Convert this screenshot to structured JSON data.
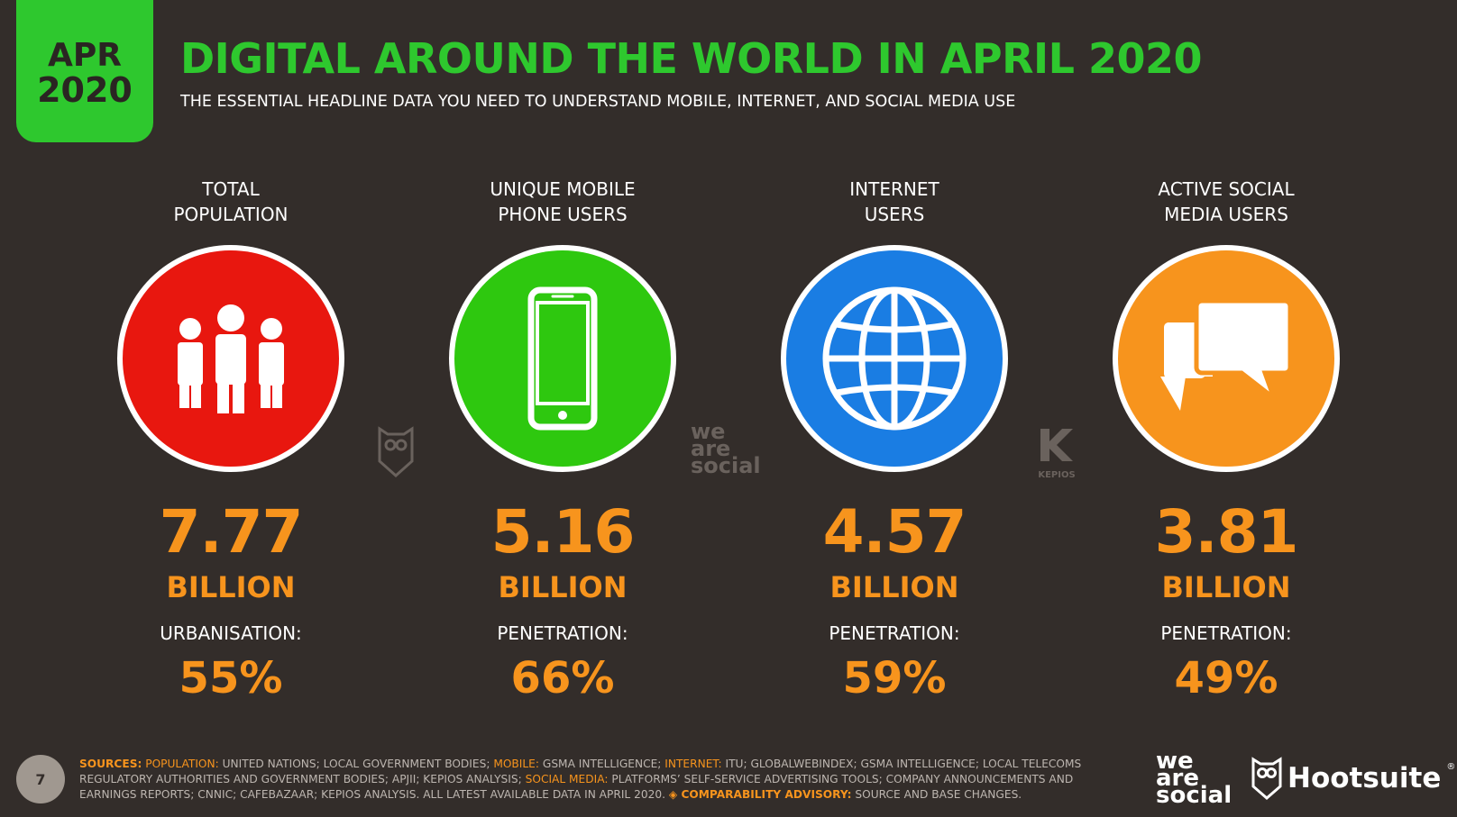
{
  "badge": {
    "month": "APR",
    "year": "2020"
  },
  "header": {
    "title": "DIGITAL AROUND THE WORLD IN APRIL 2020",
    "subtitle": "THE ESSENTIAL HEADLINE DATA YOU NEED TO UNDERSTAND MOBILE, INTERNET, AND SOCIAL MEDIA USE"
  },
  "stats": [
    {
      "label_line1": "TOTAL",
      "label_line2": "POPULATION",
      "value": "7.77",
      "unit": "BILLION",
      "sub_label": "URBANISATION:",
      "sub_value": "55%",
      "color": "#e8170f",
      "icon": "people-icon"
    },
    {
      "label_line1": "UNIQUE MOBILE",
      "label_line2": "PHONE USERS",
      "value": "5.16",
      "unit": "BILLION",
      "sub_label": "PENETRATION:",
      "sub_value": "66%",
      "color": "#2ec80f",
      "icon": "mobile-phone-icon"
    },
    {
      "label_line1": "INTERNET",
      "label_line2": "USERS",
      "value": "4.57",
      "unit": "BILLION",
      "sub_label": "PENETRATION:",
      "sub_value": "59%",
      "color": "#1a7de3",
      "icon": "globe-icon"
    },
    {
      "label_line1": "ACTIVE SOCIAL",
      "label_line2": "MEDIA USERS",
      "value": "3.81",
      "unit": "BILLION",
      "sub_label": "PENETRATION:",
      "sub_value": "49%",
      "color": "#f7941d",
      "icon": "chat-bubbles-icon"
    }
  ],
  "watermarks": {
    "was_line1": "we",
    "was_line2": "are",
    "was_line3": "social",
    "kepios": "KEPIOS"
  },
  "footer": {
    "page_number": "7",
    "sources_label": "SOURCES:",
    "pop_label": "POPULATION:",
    "pop_text": "UNITED NATIONS; LOCAL GOVERNMENT BODIES;",
    "mobile_label": "MOBILE:",
    "mobile_text": "GSMA INTELLIGENCE;",
    "internet_label": "INTERNET:",
    "internet_text": "ITU; GLOBALWEBINDEX; GSMA INTELLIGENCE; LOCAL TELECOMS REGULATORY AUTHORITIES AND GOVERNMENT BODIES; APJII; KEPIOS ANALYSIS;",
    "social_label": "SOCIAL MEDIA:",
    "social_text": "PLATFORMS’ SELF-SERVICE ADVERTISING TOOLS; COMPANY ANNOUNCEMENTS AND EARNINGS REPORTS; CNNIC; CAFEBAZAAR; KEPIOS ANALYSIS. ALL LATEST AVAILABLE DATA IN APRIL 2020.",
    "advisory_label": "◈ COMPARABILITY ADVISORY:",
    "advisory_text": "SOURCE AND BASE CHANGES.",
    "brand_was_1": "we",
    "brand_was_2": "are",
    "brand_was_3": "social",
    "brand_hootsuite": "Hootsuite",
    "brand_reg": "®"
  }
}
